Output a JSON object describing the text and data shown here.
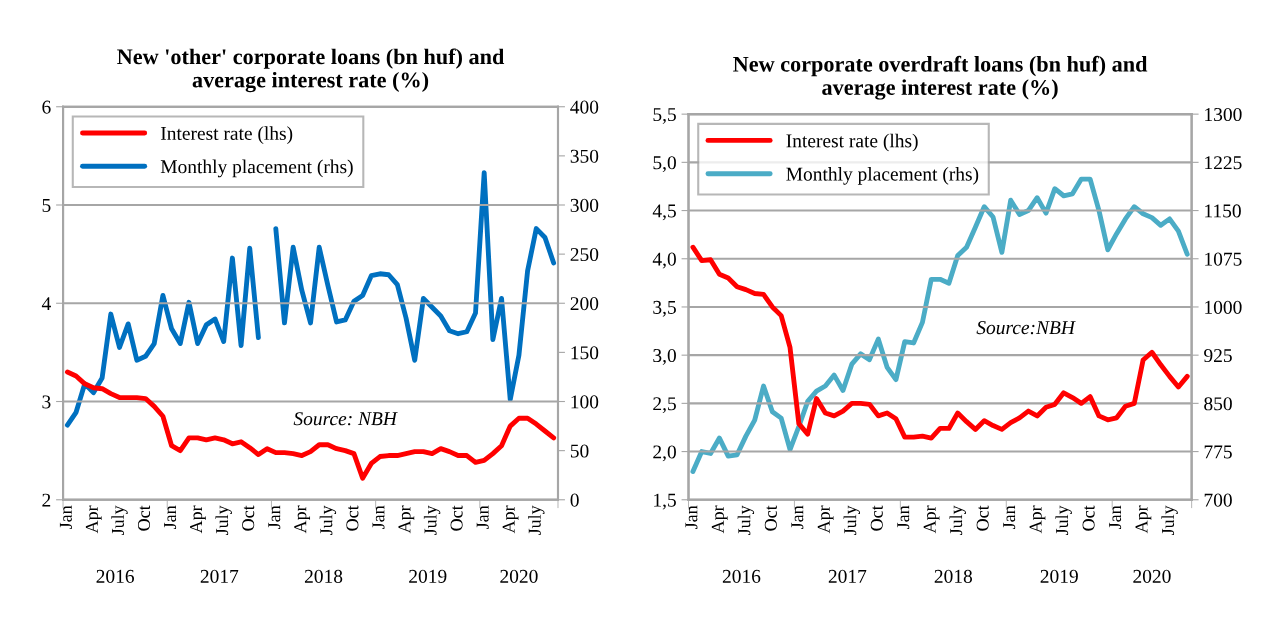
{
  "chart_data": [
    {
      "type": "line",
      "title": "New 'other' corporate loans (bn huf) and\naverage interest rate (%)",
      "categories": [
        "Jan",
        null,
        null,
        "Apr",
        null,
        null,
        "July",
        null,
        null,
        "Oct",
        null,
        null,
        "Jan",
        null,
        null,
        "Apr",
        null,
        null,
        "July",
        null,
        null,
        "Oct",
        null,
        null,
        "Jan",
        null,
        null,
        "Apr",
        null,
        null,
        "July",
        null,
        null,
        "Oct",
        null,
        null,
        "Jan",
        null,
        null,
        "Apr",
        null,
        null,
        "July",
        null,
        null,
        "Oct",
        null,
        null,
        "Jan",
        null,
        null,
        "Apr",
        null,
        null,
        "July",
        null,
        null
      ],
      "series": [
        {
          "name": "Interest rate (lhs)",
          "color": "#ff0000",
          "values": [
            3.3,
            3.26,
            3.18,
            3.14,
            3.13,
            3.08,
            3.04,
            3.04,
            3.04,
            3.03,
            2.95,
            2.85,
            2.55,
            2.5,
            2.63,
            2.63,
            2.61,
            2.63,
            2.61,
            2.57,
            2.59,
            2.53,
            2.46,
            2.52,
            2.48,
            2.48,
            2.47,
            2.45,
            2.49,
            2.56,
            2.56,
            2.52,
            2.5,
            2.47,
            2.22,
            2.37,
            2.44,
            2.45,
            2.45,
            2.47,
            2.49,
            2.49,
            2.47,
            2.52,
            2.49,
            2.45,
            2.45,
            2.38,
            2.4,
            2.47,
            2.55,
            2.75,
            2.83,
            2.83,
            2.77,
            2.7,
            2.63
          ]
        },
        {
          "name": "Monthly placement (rhs)",
          "color": "#0070c0",
          "axis": "y2",
          "values": [
            76,
            89,
            118,
            109,
            124,
            189,
            155,
            179,
            142,
            146,
            159,
            208,
            174,
            159,
            201,
            159,
            178,
            184,
            161,
            246,
            157,
            256,
            165,
            null,
            276,
            180,
            257,
            213,
            180,
            257,
            218,
            181,
            183,
            202,
            208,
            228,
            230,
            229,
            219,
            185,
            142,
            205,
            196,
            187,
            172,
            169,
            171,
            190,
            333,
            163,
            205,
            102,
            147,
            233,
            276,
            267,
            241
          ]
        }
      ],
      "ylim": [
        2,
        6
      ],
      "yticks": [
        2,
        3,
        4,
        5,
        6
      ],
      "y2lim": [
        0,
        400
      ],
      "y2ticks": [
        0,
        50,
        100,
        150,
        200,
        250,
        300,
        350,
        400
      ],
      "grid": "y",
      "legend": "top left",
      "annotations": [
        "Source: NBH",
        "2016",
        "2017",
        "2018",
        "2019",
        "2020"
      ]
    },
    {
      "type": "line",
      "title": "New corporate overdraft loans (bn huf) and\naverage interest rate (%)",
      "categories": [
        "Jan",
        null,
        null,
        "Apr",
        null,
        null,
        "July",
        null,
        null,
        "Oct",
        null,
        null,
        "Jan",
        null,
        null,
        "Apr",
        null,
        null,
        "July",
        null,
        null,
        "Oct",
        null,
        null,
        "Jan",
        null,
        null,
        "Apr",
        null,
        null,
        "July",
        null,
        null,
        "Oct",
        null,
        null,
        "Jan",
        null,
        null,
        "Apr",
        null,
        null,
        "July",
        null,
        null,
        "Oct",
        null,
        null,
        "Jan",
        null,
        null,
        "Apr",
        null,
        null,
        "July",
        null,
        null
      ],
      "series": [
        {
          "name": "Interest rate (lhs)",
          "color": "#ff0000",
          "values": [
            4.12,
            3.98,
            3.99,
            3.84,
            3.8,
            3.71,
            3.68,
            3.64,
            3.63,
            3.5,
            3.41,
            3.08,
            2.29,
            2.18,
            2.55,
            2.4,
            2.37,
            2.42,
            2.5,
            2.5,
            2.49,
            2.37,
            2.4,
            2.34,
            2.15,
            2.15,
            2.16,
            2.14,
            2.24,
            2.24,
            2.4,
            2.31,
            2.23,
            2.32,
            2.27,
            2.23,
            2.3,
            2.35,
            2.42,
            2.37,
            2.46,
            2.49,
            2.61,
            2.56,
            2.5,
            2.57,
            2.37,
            2.33,
            2.35,
            2.47,
            2.5,
            2.95,
            3.03,
            2.9,
            2.78,
            2.67,
            2.78
          ]
        },
        {
          "name": "Monthly placement (rhs)",
          "color": "#4bacc6",
          "axis": "y2",
          "values": [
            744,
            775,
            772,
            796,
            768,
            770,
            799,
            824,
            877,
            837,
            827,
            778,
            814,
            853,
            869,
            877,
            894,
            870,
            911,
            927,
            918,
            950,
            906,
            887,
            946,
            944,
            976,
            1043,
            1043,
            1037,
            1080,
            1093,
            1124,
            1156,
            1140,
            1085,
            1166,
            1144,
            1150,
            1170,
            1146,
            1184,
            1173,
            1176,
            1199,
            1199,
            1150,
            1089,
            1114,
            1137,
            1156,
            1145,
            1139,
            1127,
            1137,
            1118,
            1082
          ]
        }
      ],
      "ylim": [
        1.5,
        5.5
      ],
      "yticks": [
        {
          "value": 1.5,
          "label": "1,5"
        },
        {
          "value": 2.0,
          "label": "2,0"
        },
        {
          "value": 2.5,
          "label": "2,5"
        },
        {
          "value": 3.0,
          "label": "3,0"
        },
        {
          "value": 3.5,
          "label": "3,5"
        },
        {
          "value": 4.0,
          "label": "4,0"
        },
        {
          "value": 4.5,
          "label": "4,5"
        },
        {
          "value": 5.0,
          "label": "5,0"
        },
        {
          "value": 5.5,
          "label": "5,5"
        }
      ],
      "y2lim": [
        700,
        1300
      ],
      "y2ticks": [
        700,
        775,
        850,
        925,
        1000,
        1075,
        1150,
        1225,
        1300
      ],
      "grid": "y",
      "legend": "top left",
      "annotations": [
        "Source:NBH",
        "2016",
        "2017",
        "2018",
        "2019",
        "2020"
      ]
    }
  ]
}
